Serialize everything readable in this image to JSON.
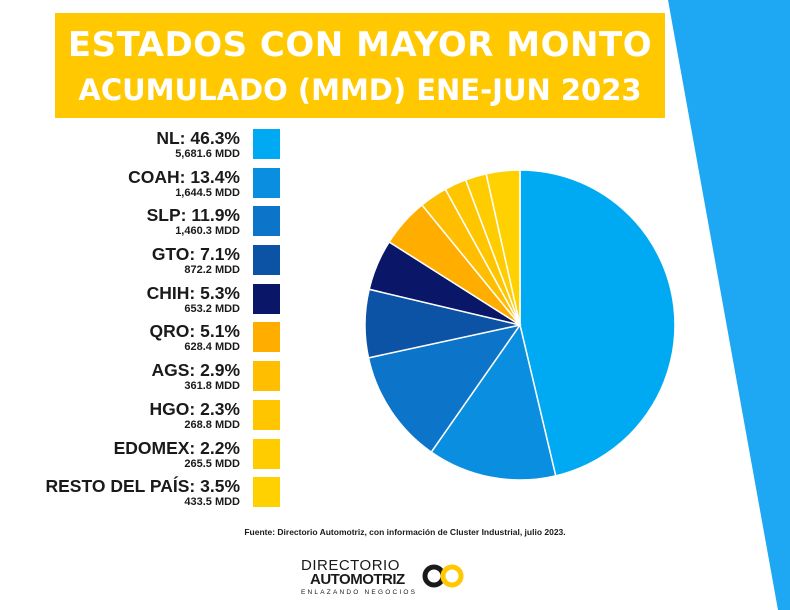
{
  "title_line1": "ESTADOS CON MAYOR MONTO",
  "title_line2": "ACUMULADO (MMD) ENE-JUN 2023",
  "colors": {
    "banner": "#FFC800",
    "stripe": "#1EA7F2"
  },
  "chart_data": {
    "type": "pie",
    "title": "ESTADOS CON MAYOR MONTO ACUMULADO (MMD) ENE-JUN 2023",
    "start": "12 o'clock",
    "direction": "clockwise",
    "legend_position": "left",
    "slices": [
      {
        "label": "NL: 46.3%",
        "value_label": "5,681.6 MDD",
        "percent": 46.3,
        "value": 5681.6,
        "color": "#00AAF2"
      },
      {
        "label": "COAH: 13.4%",
        "value_label": "1,644.5 MDD",
        "percent": 13.4,
        "value": 1644.5,
        "color": "#0A8EE0"
      },
      {
        "label": "SLP: 11.9%",
        "value_label": "1,460.3 MDD",
        "percent": 11.9,
        "value": 1460.3,
        "color": "#0C74C9"
      },
      {
        "label": "GTO: 7.1%",
        "value_label": "872.2 MDD",
        "percent": 7.1,
        "value": 872.2,
        "color": "#0D53A5"
      },
      {
        "label": "CHIH: 5.3%",
        "value_label": "653.2 MDD",
        "percent": 5.3,
        "value": 653.2,
        "color": "#0A1668"
      },
      {
        "label": "QRO: 5.1%",
        "value_label": "628.4 MDD",
        "percent": 5.1,
        "value": 628.4,
        "color": "#FFAE00"
      },
      {
        "label": "AGS: 2.9%",
        "value_label": "361.8 MDD",
        "percent": 2.9,
        "value": 361.8,
        "color": "#FFBF00"
      },
      {
        "label": "HGO: 2.3%",
        "value_label": "268.8 MDD",
        "percent": 2.3,
        "value": 268.8,
        "color": "#FFC600"
      },
      {
        "label": "EDOMEX: 2.2%",
        "value_label": "265.5 MDD",
        "percent": 2.2,
        "value": 265.5,
        "color": "#FFCC00"
      },
      {
        "label": "RESTO DEL PAÍS: 3.5%",
        "value_label": "433.5 MDD",
        "percent": 3.5,
        "value": 433.5,
        "color": "#FFD100"
      }
    ]
  },
  "source": "Fuente: Directorio Automotriz, con información de Cluster Industrial, julio 2023.",
  "logo": {
    "line1": "DIRECTORIO",
    "line2": "AUTOMOTRIZ",
    "tagline": "ENLAZANDO NEGOCIOS"
  }
}
